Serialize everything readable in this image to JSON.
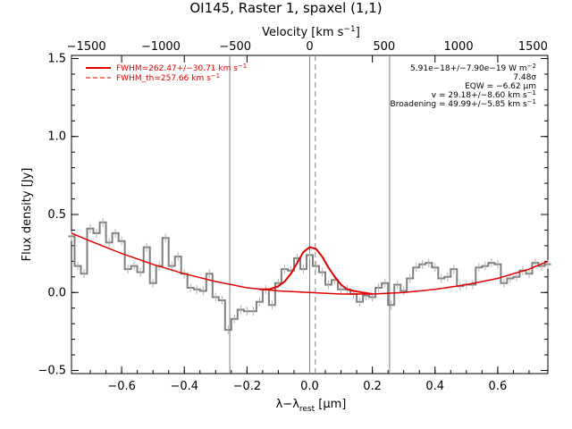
{
  "chart_data": {
    "type": "line",
    "title": "OI145, Raster 1, spaxel (1,1)",
    "xlabel": "λ−λ",
    "xlabel_sub": "rest",
    "xlabel_unit": " [μm]",
    "ylabel": "Flux density [Jy]",
    "top_axis_label": "Velocity [km s",
    "top_axis_label_sup": "−1",
    "top_axis_label_end": "]",
    "xlim": [
      -0.76,
      0.76
    ],
    "ylim": [
      -0.52,
      1.52
    ],
    "top_xlim": [
      -1600,
      1600
    ],
    "x_ticks": [
      "−0.6",
      "−0.4",
      "−0.2",
      "0.0",
      "0.2",
      "0.4",
      "0.6"
    ],
    "x_tick_values": [
      -0.6,
      -0.4,
      -0.2,
      0.0,
      0.2,
      0.4,
      0.6
    ],
    "y_ticks": [
      "−0.5",
      "0.0",
      "0.5",
      "1.0",
      "1.5"
    ],
    "y_tick_values": [
      -0.5,
      0.0,
      0.5,
      1.0,
      1.5
    ],
    "top_ticks": [
      "−1500",
      "−1000",
      "−500",
      "0",
      "500",
      "1000",
      "1500"
    ],
    "top_tick_values": [
      -1500,
      -1000,
      -500,
      0,
      500,
      1000,
      1500
    ],
    "vertical_lines": [
      {
        "x": -0.255,
        "style": "solid"
      },
      {
        "x": 0.0,
        "style": "solid"
      },
      {
        "x": 0.018,
        "style": "dashed"
      },
      {
        "x": 0.255,
        "style": "solid"
      }
    ],
    "series": [
      {
        "style": "step",
        "color": "#808080",
        "x": [
          -0.76,
          -0.74,
          -0.72,
          -0.7,
          -0.68,
          -0.66,
          -0.64,
          -0.62,
          -0.6,
          -0.58,
          -0.56,
          -0.54,
          -0.52,
          -0.5,
          -0.48,
          -0.46,
          -0.44,
          -0.42,
          -0.4,
          -0.38,
          -0.36,
          -0.34,
          -0.32,
          -0.3,
          -0.28,
          -0.26,
          -0.24,
          -0.22,
          -0.2,
          -0.18,
          -0.16,
          -0.14,
          -0.12,
          -0.1,
          -0.08,
          -0.06,
          -0.04,
          -0.02,
          0.0,
          0.02,
          0.04,
          0.06,
          0.08,
          0.1,
          0.12,
          0.14,
          0.16,
          0.18,
          0.2,
          0.22,
          0.24,
          0.26,
          0.28,
          0.3,
          0.32,
          0.34,
          0.36,
          0.38,
          0.4,
          0.42,
          0.44,
          0.46,
          0.48,
          0.5,
          0.52,
          0.54,
          0.56,
          0.58,
          0.6,
          0.62,
          0.64,
          0.66,
          0.68,
          0.7,
          0.72,
          0.74,
          0.76
        ],
        "y": [
          0.36,
          0.17,
          0.12,
          0.41,
          0.38,
          0.45,
          0.32,
          0.38,
          0.33,
          0.15,
          0.17,
          0.13,
          0.29,
          0.06,
          0.17,
          0.35,
          0.17,
          0.23,
          0.12,
          0.03,
          0.02,
          0.01,
          0.12,
          -0.03,
          -0.05,
          -0.24,
          -0.17,
          -0.11,
          -0.12,
          -0.12,
          -0.06,
          0.02,
          -0.08,
          0.06,
          0.15,
          0.14,
          0.22,
          0.15,
          0.24,
          0.17,
          0.13,
          0.05,
          0.08,
          0.02,
          0.02,
          -0.01,
          -0.06,
          -0.02,
          -0.03,
          0.03,
          0.06,
          -0.08,
          0.05,
          0.01,
          0.09,
          0.16,
          0.18,
          0.19,
          0.16,
          0.09,
          0.1,
          0.15,
          0.04,
          0.05,
          0.05,
          0.16,
          0.17,
          0.19,
          0.18,
          0.06,
          0.09,
          0.1,
          0.14,
          0.12,
          0.19,
          0.17,
          0.18
        ]
      },
      {
        "style": "line",
        "color": "#e00000",
        "name": "baseline",
        "x": [
          -0.76,
          -0.7,
          -0.6,
          -0.5,
          -0.4,
          -0.3,
          -0.2,
          -0.1,
          0.0,
          0.1,
          0.2,
          0.3,
          0.4,
          0.5,
          0.6,
          0.7,
          0.76
        ],
        "y": [
          0.38,
          0.33,
          0.25,
          0.18,
          0.12,
          0.07,
          0.03,
          0.01,
          0.0,
          -0.01,
          -0.01,
          0.0,
          0.02,
          0.05,
          0.09,
          0.15,
          0.2
        ]
      },
      {
        "style": "line",
        "color": "#e00000",
        "name": "fit",
        "x": [
          -0.16,
          -0.13,
          -0.1,
          -0.08,
          -0.06,
          -0.04,
          -0.02,
          0.0,
          0.02,
          0.04,
          0.06,
          0.08,
          0.1,
          0.12,
          0.14,
          0.17,
          0.2
        ],
        "y": [
          0.02,
          0.02,
          0.04,
          0.07,
          0.12,
          0.19,
          0.26,
          0.29,
          0.28,
          0.23,
          0.16,
          0.1,
          0.05,
          0.02,
          0.01,
          0.0,
          -0.01
        ]
      }
    ],
    "legend": [
      {
        "label": "FWHM=262.47+/−30.71 km s",
        "sup": "−1",
        "style": "solid"
      },
      {
        "label": "FWHM_th=257.66 km s",
        "sup": "−1",
        "style": "dashed"
      }
    ],
    "legend_position": "top-left",
    "annotations": [
      {
        "text": "5.91e−18+/−7.90e−19 W m",
        "sup": "−2"
      },
      {
        "text": "7.48σ",
        "sup": ""
      },
      {
        "text": "EQW = −6.62 μm",
        "sup": ""
      },
      {
        "text": "v = 29.18+/−8.60 km s",
        "sup": "−1"
      },
      {
        "text": "Broadening = 49.99+/−5.85 km s",
        "sup": "−1"
      }
    ],
    "annotation_position": "top-right",
    "grid": false
  }
}
